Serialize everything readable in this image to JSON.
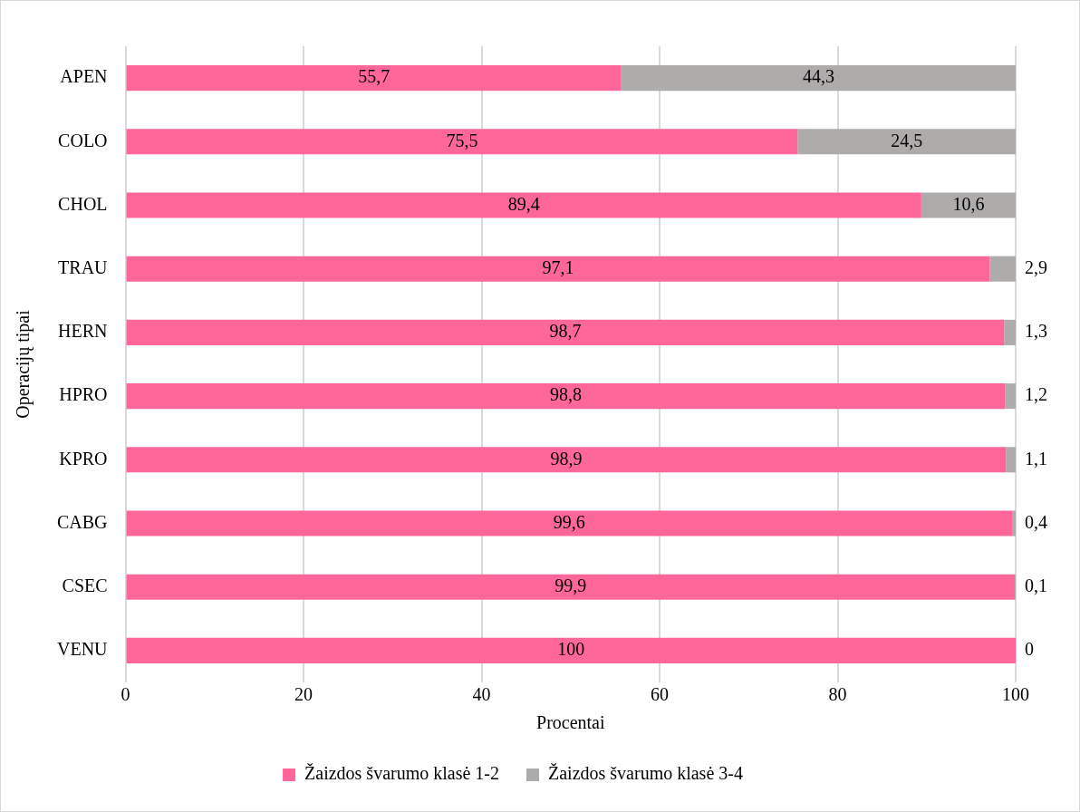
{
  "chart_data": {
    "type": "bar",
    "orientation": "horizontal",
    "stacked": true,
    "xlabel": "Procentai",
    "ylabel": "Operacijų tipai",
    "categories": [
      "APEN",
      "COLO",
      "CHOL",
      "TRAU",
      "HERN",
      "HPRO",
      "KPRO",
      "CABG",
      "CSEC",
      "VENU"
    ],
    "series": [
      {
        "name": "Žaizdos švarumo klasė 1-2",
        "color": "#ff6699",
        "values": [
          55.7,
          75.5,
          89.4,
          97.1,
          98.7,
          98.8,
          98.9,
          99.6,
          99.9,
          100
        ],
        "value_labels": [
          "55,7",
          "75,5",
          "89,4",
          "97,1",
          "98,7",
          "98,8",
          "98,9",
          "99,6",
          "99,9",
          "100"
        ]
      },
      {
        "name": "Žaizdos švarumo klasė 3-4",
        "color": "#aeabab",
        "values": [
          44.3,
          24.5,
          10.6,
          2.9,
          1.3,
          1.2,
          1.1,
          0.4,
          0.1,
          0
        ],
        "value_labels": [
          "44,3",
          "24,5",
          "10,6",
          "2,9",
          "1,3",
          "1,2",
          "1,1",
          "0,4",
          "0,1",
          "0"
        ]
      }
    ],
    "xlim": [
      0,
      100
    ],
    "xticks": [
      0,
      20,
      40,
      60,
      80,
      100
    ],
    "grid": "x",
    "legend": "bottom"
  }
}
